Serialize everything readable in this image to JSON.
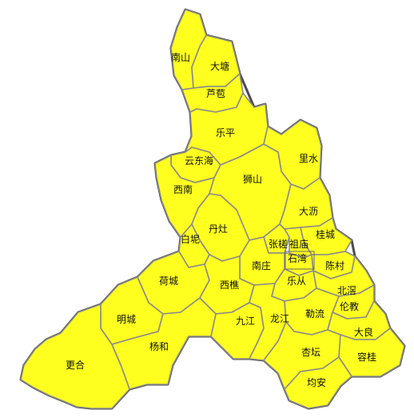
{
  "colors": {
    "region_fill": "#ffff1f",
    "border": "#8a8a8a",
    "outline": "#4a4a4a",
    "label": "#111111"
  },
  "regions": [
    {
      "id": "nanshan",
      "label": "南山"
    },
    {
      "id": "datang",
      "label": "大塘"
    },
    {
      "id": "lubao",
      "label": "芦苞"
    },
    {
      "id": "leping",
      "label": "乐平"
    },
    {
      "id": "yundonghai",
      "label": "云东海"
    },
    {
      "id": "lishui",
      "label": "里水"
    },
    {
      "id": "shishan",
      "label": "狮山"
    },
    {
      "id": "xinan",
      "label": "西南"
    },
    {
      "id": "dali",
      "label": "大沥"
    },
    {
      "id": "danzao",
      "label": "丹灶"
    },
    {
      "id": "guicheng",
      "label": "桂城"
    },
    {
      "id": "zhangcha",
      "label": "张槎"
    },
    {
      "id": "zumiao",
      "label": "祖庙"
    },
    {
      "id": "baini",
      "label": "白坭"
    },
    {
      "id": "shiwan",
      "label": "石湾"
    },
    {
      "id": "nanzhuang",
      "label": "南庄"
    },
    {
      "id": "chencun",
      "label": "陈村"
    },
    {
      "id": "hecheng",
      "label": "荷城"
    },
    {
      "id": "xiqiao",
      "label": "西樵"
    },
    {
      "id": "lecong",
      "label": "乐从"
    },
    {
      "id": "beijiao",
      "label": "北滘"
    },
    {
      "id": "lunjiao",
      "label": "伦教"
    },
    {
      "id": "mingcheng",
      "label": "明城"
    },
    {
      "id": "leliu",
      "label": "勒流"
    },
    {
      "id": "jiujiang",
      "label": "九江"
    },
    {
      "id": "longjiang",
      "label": "龙江"
    },
    {
      "id": "daliang",
      "label": "大良"
    },
    {
      "id": "yanghe",
      "label": "杨和"
    },
    {
      "id": "xingtan",
      "label": "杏坛"
    },
    {
      "id": "ronggui",
      "label": "容桂"
    },
    {
      "id": "gengHe",
      "label": "更合"
    },
    {
      "id": "junan",
      "label": "均安"
    }
  ]
}
